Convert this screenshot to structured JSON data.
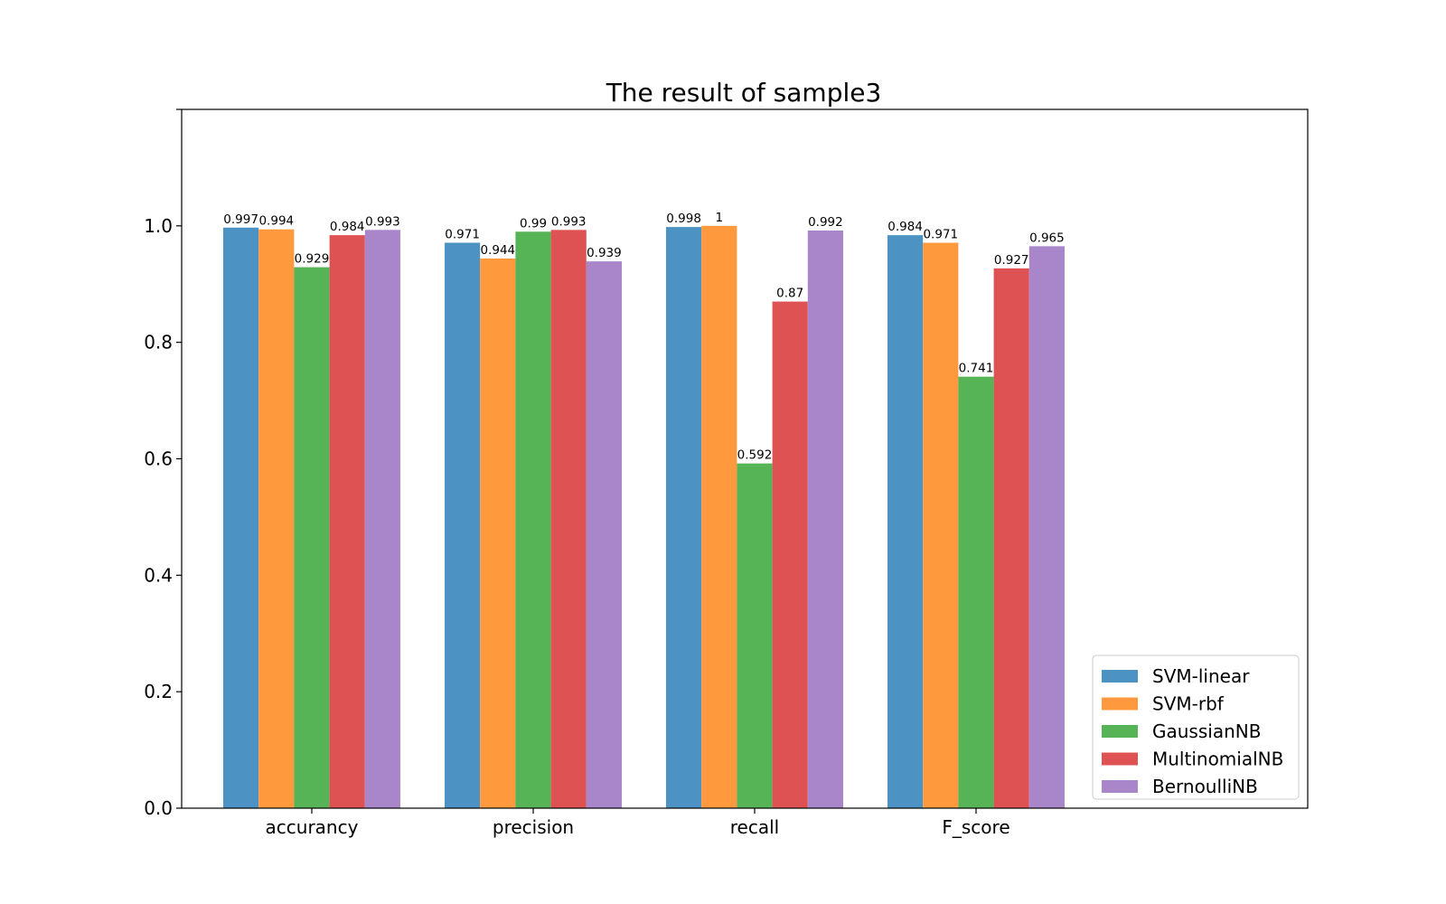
{
  "chart_data": {
    "type": "bar",
    "title": "The result of sample3",
    "xlabel": "",
    "ylabel": "",
    "categories": [
      "accurancy",
      "precision",
      "recall",
      "F_score"
    ],
    "series": [
      {
        "name": "SVM-linear",
        "color": "#4c92c3",
        "values": [
          0.997,
          0.971,
          0.998,
          0.984
        ],
        "labels": [
          "0.997",
          "0.971",
          "0.998",
          "0.984"
        ]
      },
      {
        "name": "SVM-rbf",
        "color": "#ff993e",
        "values": [
          0.994,
          0.944,
          1.0,
          0.971
        ],
        "labels": [
          "0.994",
          "0.944",
          "1",
          "0.971"
        ]
      },
      {
        "name": "GaussianNB",
        "color": "#56b356",
        "values": [
          0.929,
          0.99,
          0.592,
          0.741
        ],
        "labels": [
          "0.929",
          "0.99",
          "0.592",
          "0.741"
        ]
      },
      {
        "name": "MultinomialNB",
        "color": "#de5253",
        "values": [
          0.984,
          0.993,
          0.87,
          0.927
        ],
        "labels": [
          "0.984",
          "0.993",
          "0.87",
          "0.927"
        ]
      },
      {
        "name": "BernoulliNB",
        "color": "#a985ca",
        "values": [
          0.993,
          0.939,
          0.992,
          0.965
        ],
        "labels": [
          "0.993",
          "0.939",
          "0.992",
          "0.965"
        ]
      }
    ],
    "yticks": [
      "0.0",
      "0.2",
      "0.4",
      "0.6",
      "0.8",
      "1.0"
    ],
    "ylim": [
      0,
      1.2
    ],
    "grid": false,
    "legend_position": "lower-right"
  }
}
